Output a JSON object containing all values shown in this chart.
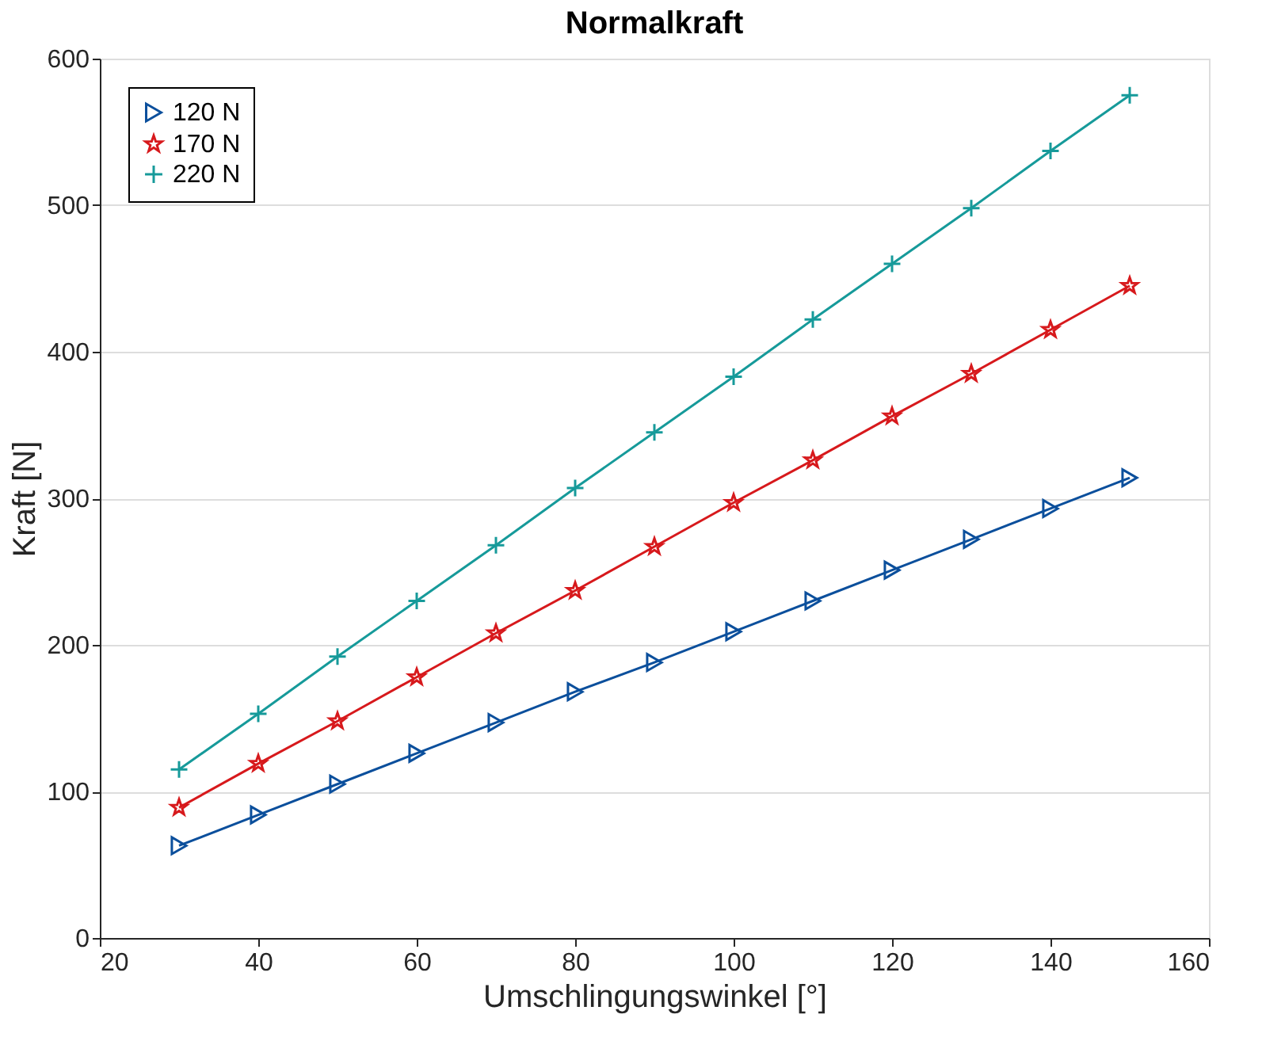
{
  "chart_data": {
    "type": "line",
    "title": "Normalkraft",
    "xlabel": "Umschlingungswinkel [°]",
    "ylabel": "Kraft [N]",
    "x": [
      30,
      40,
      50,
      60,
      70,
      80,
      90,
      100,
      110,
      120,
      130,
      140,
      150
    ],
    "series": [
      {
        "name": "120 N",
        "color": "#0b4f9c",
        "marker": "triangle",
        "values": [
          63,
          84,
          105,
          126,
          147,
          168,
          188,
          209,
          230,
          251,
          272,
          293,
          314
        ]
      },
      {
        "name": "170 N",
        "color": "#d7191c",
        "marker": "star",
        "values": [
          89,
          119,
          148,
          178,
          208,
          237,
          267,
          297,
          326,
          356,
          385,
          415,
          445
        ]
      },
      {
        "name": "220 N",
        "color": "#169a9a",
        "marker": "cross",
        "values": [
          115,
          153,
          192,
          230,
          268,
          307,
          345,
          383,
          422,
          460,
          498,
          537,
          575
        ]
      }
    ],
    "xlim": [
      20,
      160
    ],
    "xticks": [
      20,
      40,
      60,
      80,
      100,
      120,
      140,
      160
    ],
    "ylim": [
      0,
      600
    ],
    "yticks": [
      0,
      100,
      200,
      300,
      400,
      500,
      600
    ],
    "grid": "y",
    "legend": "top left",
    "line_style": "solid"
  }
}
